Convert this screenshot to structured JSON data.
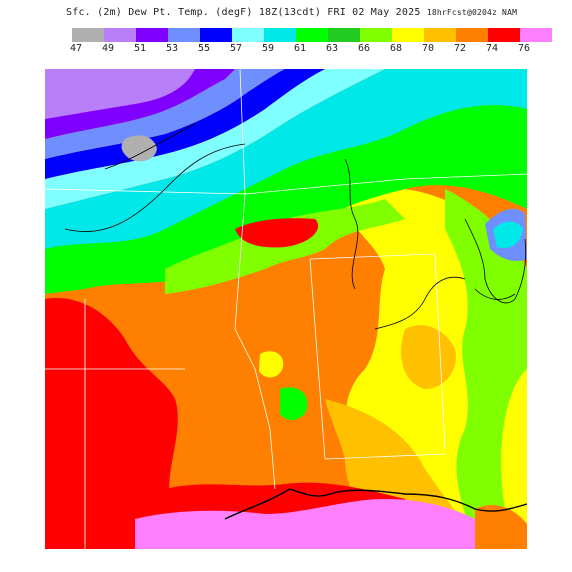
{
  "title": {
    "main": "Sfc. (2m) Dew Pt. Temp. (degF) 18Z(13cdt) FRI 02 May 2025",
    "suffix": "18hrFcst@0204z NAM"
  },
  "legend": {
    "labels": [
      "47",
      "49",
      "51",
      "53",
      "55",
      "57",
      "59",
      "61",
      "63",
      "66",
      "68",
      "70",
      "72",
      "74",
      "76"
    ],
    "colors": [
      "#b0b0b0",
      "#b87ff8",
      "#7f00ff",
      "#6f8fff",
      "#0000ff",
      "#7fffff",
      "#00e8e8",
      "#00ff00",
      "#22cc22",
      "#7fff00",
      "#ffff00",
      "#ffc000",
      "#ff7f00",
      "#ff0000",
      "#ff7fff"
    ]
  },
  "map": {
    "region": "Southern United States",
    "colors": {
      "grey": "#b0b0b0",
      "lavender": "#b87ff8",
      "purple": "#7f00ff",
      "periwinkle": "#6f8fff",
      "blue": "#0000ff",
      "cyan": "#00e8e8",
      "light_cyan": "#7fffff",
      "green": "#00ff00",
      "dark_green": "#22cc22",
      "lime": "#7fff00",
      "yellow": "#ffff00",
      "gold": "#ffc000",
      "orange": "#ff7f00",
      "red": "#ff0000",
      "pink": "#ff7fff"
    }
  }
}
